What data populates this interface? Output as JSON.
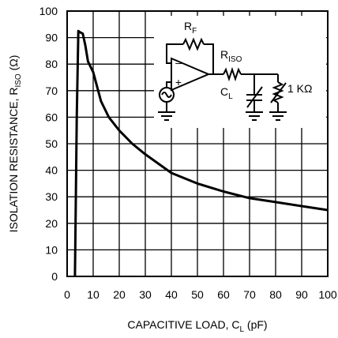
{
  "chart_data": {
    "type": "line",
    "xlabel": "CAPACITIVE LOAD, C",
    "xlabel_subscript": "L",
    "xlabel_suffix": " (pF)",
    "ylabel": "ISOLATION RESISTANCE, R",
    "ylabel_subscript": "ISO",
    "ylabel_suffix": " (Ω)",
    "xlim": [
      0,
      100
    ],
    "ylim": [
      0,
      100
    ],
    "xticks": [
      "0",
      "10",
      "20",
      "30",
      "40",
      "50",
      "60",
      "70",
      "80",
      "90",
      "100"
    ],
    "yticks": [
      "0",
      "10",
      "20",
      "30",
      "40",
      "50",
      "60",
      "70",
      "80",
      "90",
      "100"
    ],
    "grid": true,
    "series": [
      {
        "x": [
          3,
          3.7,
          4.3,
          5,
          6,
          7,
          8,
          10,
          13,
          16,
          20,
          25,
          30,
          40,
          50,
          60,
          70,
          80,
          90,
          100
        ],
        "y": [
          0,
          60,
          92.5,
          92,
          91.5,
          87,
          81,
          77,
          66,
          60,
          55,
          50,
          46,
          39,
          35,
          32,
          29.5,
          28,
          26.5,
          25
        ]
      }
    ],
    "inset_schematic": {
      "labels": {
        "feedback_resistor": "R",
        "feedback_resistor_sub": "F",
        "isolation_resistor": "R",
        "isolation_resistor_sub": "ISO",
        "load_capacitor": "C",
        "load_capacitor_sub": "L",
        "load_resistor": "1 KΩ",
        "opamp_minus": "–",
        "opamp_plus": "+"
      }
    }
  }
}
